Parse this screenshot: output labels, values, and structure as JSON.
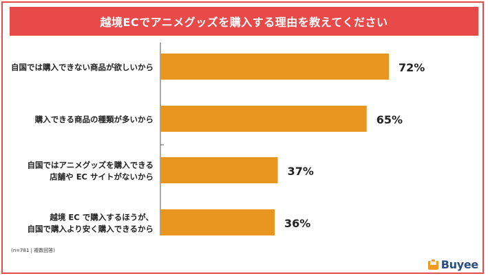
{
  "title": "越境ECでアニメグッズを購入する理由を教えてください",
  "note": "(n=781 | 複数回答)",
  "brand": {
    "name": "Buyee",
    "text_color": "#2a4d7d",
    "mark_color": "#f29a1f"
  },
  "colors": {
    "accent": "#e84a4a",
    "bar": "#e8961f",
    "axis": "#555555"
  },
  "chart_data": {
    "type": "bar",
    "orientation": "horizontal",
    "categories": [
      [
        "自国では購入できない商品が欲しいから"
      ],
      [
        "購入できる商品の種類が多いから"
      ],
      [
        "自国ではアニメグッズを購入できる",
        "店舗や EC サイトがないから"
      ],
      [
        "越境 EC で購入するほうが、",
        "自国で購入より安く購入できるから"
      ]
    ],
    "values": [
      72,
      65,
      37,
      36
    ],
    "value_labels": [
      "72%",
      "65%",
      "37%",
      "36%"
    ],
    "unit": "%",
    "xlim": [
      0,
      100
    ],
    "grid": false
  }
}
